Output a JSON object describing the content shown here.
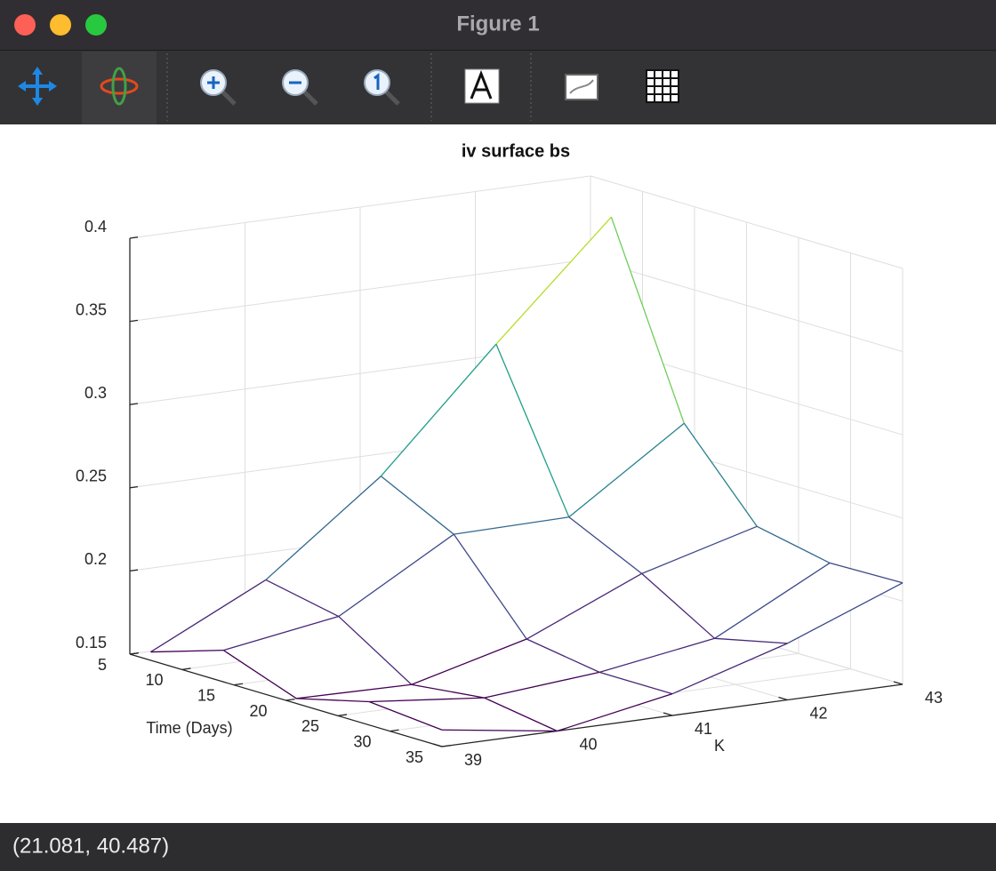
{
  "window": {
    "title": "Figure 1",
    "status": "(21.081, 40.487)"
  },
  "chart_data": {
    "type": "mesh",
    "title": "iv surface bs",
    "xlabel": "Time (Days)",
    "ylabel": "K",
    "x": [
      7,
      14,
      21,
      28,
      35
    ],
    "y": [
      39,
      40,
      41,
      42,
      43
    ],
    "z": [
      [
        0.155,
        0.189,
        0.242,
        0.312,
        0.379
      ],
      [
        0.169,
        0.18,
        0.22,
        0.221,
        0.268
      ],
      [
        0.153,
        0.152,
        0.17,
        0.2,
        0.219
      ],
      [
        0.164,
        0.157,
        0.163,
        0.174,
        0.21
      ],
      [
        0.16,
        0.15,
        0.163,
        0.184,
        0.211
      ]
    ],
    "xlim": [
      5,
      35
    ],
    "ylim": [
      39,
      43
    ],
    "zlim": [
      0.15,
      0.4
    ],
    "xticks": [
      5,
      10,
      15,
      20,
      25,
      30,
      35
    ],
    "yticks": [
      39,
      40,
      41,
      42,
      43
    ],
    "zticks": [
      0.15,
      0.2,
      0.25,
      0.3,
      0.35,
      0.4
    ],
    "grid": true,
    "colormap": [
      "#440154",
      "#482878",
      "#3e4989",
      "#31688e",
      "#26828e",
      "#1f9e89",
      "#35b779",
      "#6ece58",
      "#b5de2b",
      "#fde725"
    ]
  }
}
